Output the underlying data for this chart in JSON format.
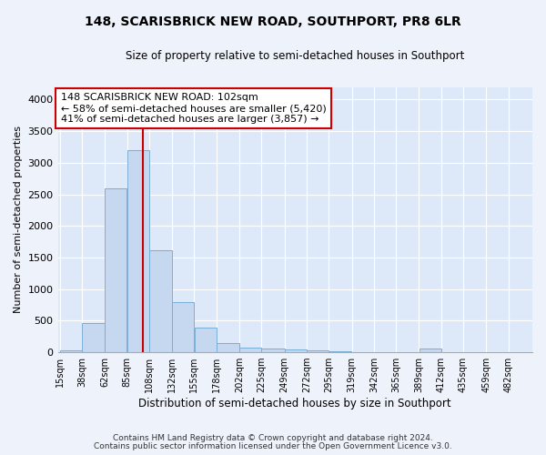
{
  "title1": "148, SCARISBRICK NEW ROAD, SOUTHPORT, PR8 6LR",
  "title2": "Size of property relative to semi-detached houses in Southport",
  "xlabel": "Distribution of semi-detached houses by size in Southport",
  "ylabel": "Number of semi-detached properties",
  "property_size": 102,
  "bin_edges": [
    15,
    38,
    62,
    85,
    108,
    132,
    155,
    178,
    202,
    225,
    249,
    272,
    295,
    319,
    342,
    365,
    389,
    412,
    435,
    459,
    482
  ],
  "bin_counts": [
    25,
    460,
    2600,
    3200,
    1620,
    800,
    390,
    150,
    70,
    55,
    50,
    30,
    20,
    8,
    8,
    5,
    60,
    5,
    5,
    5
  ],
  "bar_color": "#c5d8f0",
  "bar_edge_color": "#7aaed6",
  "vline_color": "#cc0000",
  "annotation_text": "148 SCARISBRICK NEW ROAD: 102sqm\n← 58% of semi-detached houses are smaller (5,420)\n41% of semi-detached houses are larger (3,857) →",
  "annotation_box_color": "#ffffff",
  "annotation_box_edge": "#cc0000",
  "ylim": [
    0,
    4200
  ],
  "yticks": [
    0,
    500,
    1000,
    1500,
    2000,
    2500,
    3000,
    3500,
    4000
  ],
  "bg_color": "#dde8f8",
  "footer1": "Contains HM Land Registry data © Crown copyright and database right 2024.",
  "footer2": "Contains public sector information licensed under the Open Government Licence v3.0.",
  "tick_labels": [
    "15sqm",
    "38sqm",
    "62sqm",
    "85sqm",
    "108sqm",
    "132sqm",
    "155sqm",
    "178sqm",
    "202sqm",
    "225sqm",
    "249sqm",
    "272sqm",
    "295sqm",
    "319sqm",
    "342sqm",
    "365sqm",
    "389sqm",
    "412sqm",
    "435sqm",
    "459sqm",
    "482sqm"
  ]
}
